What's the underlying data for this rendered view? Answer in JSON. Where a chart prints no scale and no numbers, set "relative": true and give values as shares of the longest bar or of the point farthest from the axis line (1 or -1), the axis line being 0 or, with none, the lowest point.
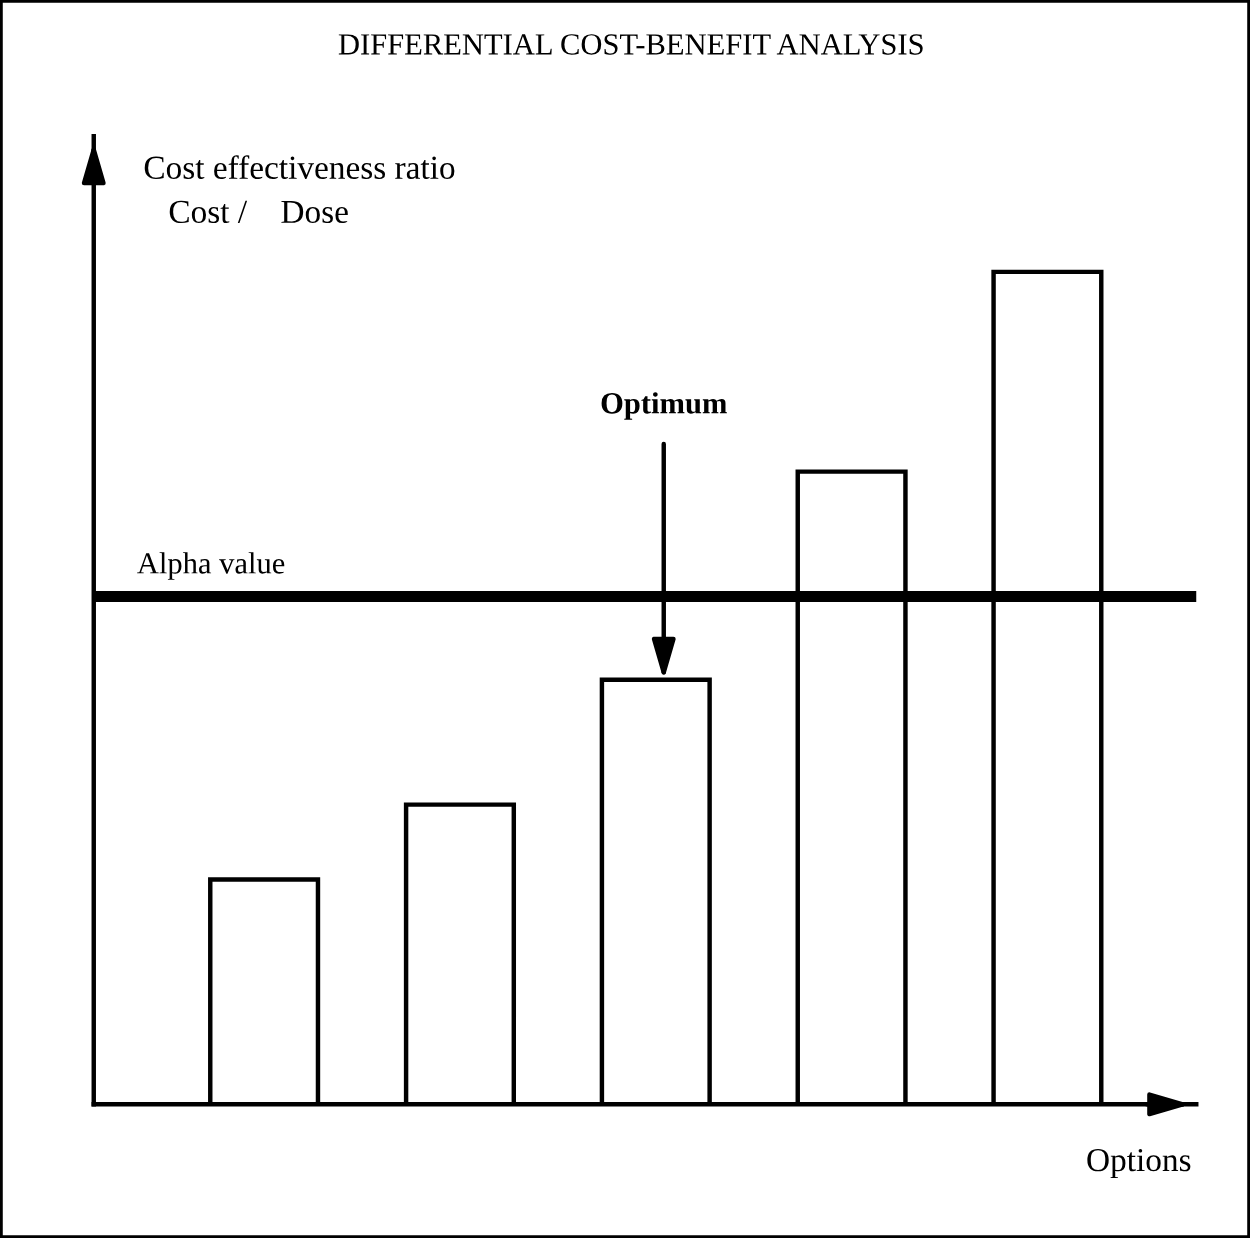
{
  "chart_data": {
    "type": "bar",
    "title": "DIFFERENTIAL COST-BENEFIT ANALYSIS",
    "ylabel": "Cost effectiveness ratio\n   Cost /    Dose",
    "xlabel": "Options",
    "relative": true,
    "categories": [
      null,
      null,
      null,
      null,
      null
    ],
    "values": [
      0.27,
      0.36,
      0.51,
      0.76,
      1.0
    ],
    "color": "#ffffff",
    "ref_lines": [
      {
        "axis": "y",
        "value": 0.61,
        "label": "Alpha value",
        "color": "#000000"
      }
    ],
    "annotations": [
      "Optimum"
    ],
    "grid": false
  }
}
